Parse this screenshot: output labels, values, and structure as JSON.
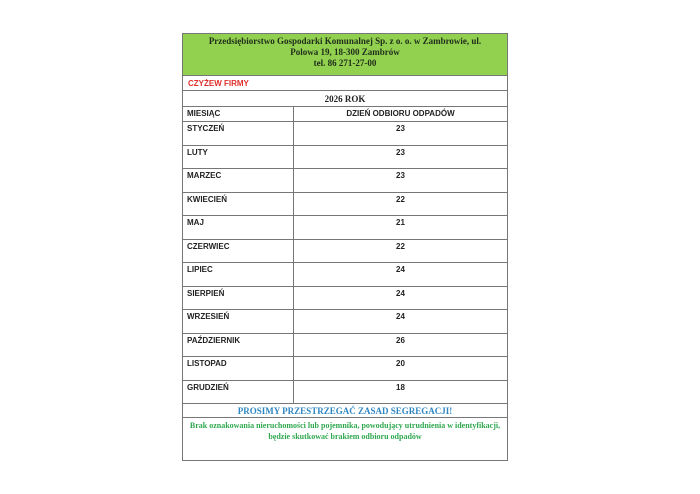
{
  "header": {
    "line1": "Przedsiębiorstwo Gospodarki Komunalnej Sp. z o. o. w Zambrowie, ul.",
    "line2": "Polowa 19, 18-300 Zambrów",
    "line3": "tel. 86 271-27-00"
  },
  "location": "CZYŻEW FIRMY",
  "year": "2026 ROK",
  "columns": [
    "MIESIĄC",
    "DZIEŃ ODBIORU ODPADÓW"
  ],
  "rows": [
    {
      "month": "STYCZEŃ",
      "day": "23"
    },
    {
      "month": "LUTY",
      "day": "23"
    },
    {
      "month": "MARZEC",
      "day": "23"
    },
    {
      "month": "KWIECIEŃ",
      "day": "22"
    },
    {
      "month": "MAJ",
      "day": "21"
    },
    {
      "month": "CZERWIEC",
      "day": "22"
    },
    {
      "month": "LIPIEC",
      "day": "24"
    },
    {
      "month": "SIERPIEŃ",
      "day": "24"
    },
    {
      "month": "WRZESIEŃ",
      "day": "24"
    },
    {
      "month": "PAŹDZIERNIK",
      "day": "26"
    },
    {
      "month": "LISTOPAD",
      "day": "20"
    },
    {
      "month": "GRUDZIEŃ",
      "day": "18"
    }
  ],
  "notice": "PROSIMY PRZESTRZEGAĆ ZASAD SEGREGACJI!",
  "warning": "Brak oznakowania nieruchomości lub pojemnika, powodujący utrudnienia w identyfikacji, będzie skutkować brakiem odbioru odpadów",
  "colors": {
    "header_bg": "#92d050",
    "location": "#e0302c",
    "notice": "#2e86c1",
    "warning": "#2fa84f"
  }
}
